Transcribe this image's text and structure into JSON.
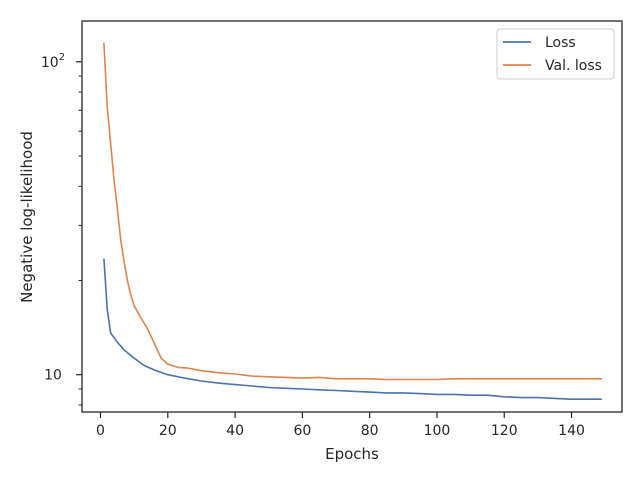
{
  "chart_data": {
    "type": "line",
    "xlabel": "Epochs",
    "ylabel": "Negative log-likelihood",
    "xlim": [
      -5.5,
      155
    ],
    "ylim": [
      7.6,
      135
    ],
    "yscale": "log",
    "x_ticks": [
      0,
      20,
      40,
      60,
      80,
      100,
      120,
      140
    ],
    "y_major_ticks": [
      10,
      100
    ],
    "y_major_labels": [
      "10",
      "2"
    ],
    "y_major_base": "10",
    "y_minor_ticks": [
      8,
      9,
      20,
      30,
      40,
      50,
      60,
      70,
      80,
      90
    ],
    "grid": false,
    "legend_position": "top-right",
    "series": [
      {
        "name": "Loss",
        "color": "#4c72b0",
        "points": [
          [
            1,
            23.5
          ],
          [
            2,
            16.2
          ],
          [
            3,
            13.6
          ],
          [
            5,
            12.7
          ],
          [
            7,
            12.0
          ],
          [
            10,
            11.3
          ],
          [
            13,
            10.7
          ],
          [
            16,
            10.35
          ],
          [
            20,
            10.0
          ],
          [
            25,
            9.75
          ],
          [
            30,
            9.55
          ],
          [
            35,
            9.4
          ],
          [
            40,
            9.3
          ],
          [
            45,
            9.2
          ],
          [
            50,
            9.1
          ],
          [
            55,
            9.05
          ],
          [
            60,
            9.0
          ],
          [
            65,
            8.95
          ],
          [
            70,
            8.9
          ],
          [
            75,
            8.85
          ],
          [
            80,
            8.8
          ],
          [
            85,
            8.75
          ],
          [
            90,
            8.75
          ],
          [
            95,
            8.7
          ],
          [
            100,
            8.65
          ],
          [
            105,
            8.65
          ],
          [
            110,
            8.6
          ],
          [
            115,
            8.6
          ],
          [
            120,
            8.5
          ],
          [
            125,
            8.45
          ],
          [
            130,
            8.45
          ],
          [
            135,
            8.4
          ],
          [
            140,
            8.35
          ],
          [
            145,
            8.35
          ],
          [
            149,
            8.35
          ]
        ]
      },
      {
        "name": "Val. loss",
        "color": "#dd8452",
        "points": [
          [
            1,
            115
          ],
          [
            2,
            72
          ],
          [
            3,
            55
          ],
          [
            4,
            42
          ],
          [
            5,
            34
          ],
          [
            6,
            27
          ],
          [
            7,
            23
          ],
          [
            8,
            20
          ],
          [
            9,
            18
          ],
          [
            10,
            16.6
          ],
          [
            12,
            15.2
          ],
          [
            14,
            14.0
          ],
          [
            16,
            12.6
          ],
          [
            18,
            11.3
          ],
          [
            20,
            10.8
          ],
          [
            23,
            10.55
          ],
          [
            26,
            10.5
          ],
          [
            30,
            10.3
          ],
          [
            35,
            10.15
          ],
          [
            40,
            10.05
          ],
          [
            45,
            9.9
          ],
          [
            50,
            9.85
          ],
          [
            55,
            9.8
          ],
          [
            60,
            9.75
          ],
          [
            65,
            9.8
          ],
          [
            70,
            9.7
          ],
          [
            75,
            9.7
          ],
          [
            80,
            9.7
          ],
          [
            85,
            9.65
          ],
          [
            90,
            9.65
          ],
          [
            95,
            9.65
          ],
          [
            100,
            9.65
          ],
          [
            105,
            9.7
          ],
          [
            110,
            9.7
          ],
          [
            115,
            9.7
          ],
          [
            120,
            9.7
          ],
          [
            125,
            9.7
          ],
          [
            130,
            9.7
          ],
          [
            135,
            9.7
          ],
          [
            140,
            9.7
          ],
          [
            145,
            9.7
          ],
          [
            149,
            9.7
          ]
        ]
      }
    ]
  }
}
